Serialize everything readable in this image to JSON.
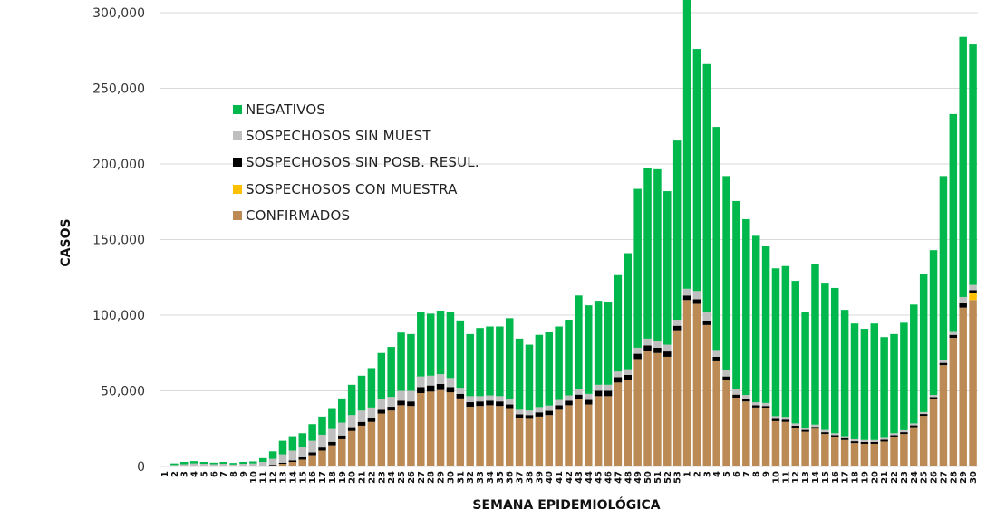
{
  "chart_data": {
    "type": "bar",
    "stacked": true,
    "title": "",
    "xlabel": "SEMANA EPIDEMIOLÓGICA",
    "ylabel": "CASOS",
    "ylim": [
      0,
      300000
    ],
    "yticks": [
      0,
      50000,
      100000,
      150000,
      200000,
      250000,
      300000
    ],
    "ytick_labels": [
      "0",
      "50,000",
      "100,000",
      "150,000",
      "200,000",
      "250,000",
      "300,000"
    ],
    "grid": true,
    "legend_position": "upper-left-inside",
    "categories": [
      "1",
      "2",
      "3",
      "4",
      "5",
      "6",
      "7",
      "8",
      "9",
      "10",
      "11",
      "12",
      "13",
      "14",
      "15",
      "16",
      "17",
      "18",
      "19",
      "20",
      "21",
      "22",
      "23",
      "24",
      "25",
      "26",
      "27",
      "28",
      "29",
      "30",
      "31",
      "32",
      "33",
      "34",
      "35",
      "36",
      "37",
      "38",
      "39",
      "40",
      "41",
      "42",
      "43",
      "44",
      "45",
      "46",
      "47",
      "48",
      "49",
      "50",
      "51",
      "52",
      "53",
      "1",
      "2",
      "3",
      "4",
      "5",
      "6",
      "7",
      "8",
      "9",
      "10",
      "11",
      "12",
      "13",
      "14",
      "15",
      "16",
      "17",
      "18",
      "19",
      "20",
      "21",
      "22",
      "23",
      "24",
      "25",
      "26",
      "27",
      "28",
      "29",
      "30"
    ],
    "series": [
      {
        "name": "CONFIRMADOS",
        "color": "#BB8A55",
        "values": [
          0,
          0,
          0,
          0,
          0,
          0,
          0,
          0,
          0,
          0,
          200,
          800,
          1800,
          3000,
          4500,
          7500,
          10500,
          14000,
          18000,
          23500,
          27000,
          29500,
          35000,
          37000,
          40500,
          40000,
          48500,
          49500,
          50500,
          49000,
          45000,
          39500,
          40000,
          40500,
          40000,
          38000,
          32000,
          31500,
          33000,
          34000,
          37500,
          40500,
          44500,
          41000,
          46500,
          46500,
          55500,
          57000,
          71000,
          76500,
          75000,
          72500,
          90000,
          110000,
          107500,
          93500,
          69500,
          57000,
          45500,
          43000,
          39000,
          38500,
          30000,
          29500,
          25500,
          23000,
          25000,
          21500,
          19500,
          17500,
          15500,
          15000,
          15000,
          16500,
          19500,
          21500,
          26000,
          33500,
          44500,
          67000,
          85000,
          105000,
          110000
        ]
      },
      {
        "name": "SOSPECHOSOS CON MUESTRA",
        "color": "#FFC000",
        "values": [
          0,
          0,
          0,
          0,
          0,
          0,
          0,
          0,
          0,
          0,
          0,
          0,
          0,
          0,
          0,
          0,
          0,
          0,
          0,
          0,
          0,
          0,
          0,
          0,
          0,
          0,
          0,
          0,
          0,
          0,
          0,
          0,
          0,
          0,
          0,
          0,
          0,
          0,
          0,
          0,
          0,
          0,
          0,
          0,
          0,
          0,
          0,
          0,
          0,
          0,
          0,
          0,
          0,
          0,
          0,
          0,
          0,
          0,
          0,
          0,
          0,
          0,
          0,
          0,
          0,
          0,
          0,
          0,
          0,
          0,
          0,
          0,
          0,
          0,
          0,
          0,
          0,
          0,
          0,
          0,
          0,
          0,
          5000
        ]
      },
      {
        "name": "SOSPECHOSOS SIN POSB. RESUL.",
        "color": "#000000",
        "values": [
          0,
          0,
          0,
          0,
          0,
          0,
          0,
          0,
          0,
          0,
          300,
          500,
          700,
          1000,
          1500,
          1800,
          2000,
          2300,
          2500,
          2500,
          2500,
          2500,
          2500,
          2500,
          3000,
          3000,
          4000,
          4000,
          4000,
          3500,
          3000,
          3000,
          3000,
          3000,
          3000,
          3000,
          2500,
          2500,
          2800,
          2800,
          3000,
          3000,
          3000,
          3000,
          3500,
          3500,
          3500,
          3500,
          3500,
          3500,
          3500,
          3500,
          3000,
          3000,
          3000,
          3000,
          3000,
          2500,
          2000,
          1800,
          1500,
          1500,
          1500,
          1500,
          1500,
          1200,
          1200,
          1200,
          1200,
          1200,
          1200,
          1200,
          1200,
          1200,
          1200,
          1200,
          1200,
          1200,
          1300,
          1500,
          2000,
          3000,
          1500
        ]
      },
      {
        "name": "SOSPECHOSOS SIN MUEST",
        "color": "#BFBFBF",
        "values": [
          300,
          1000,
          1500,
          2000,
          1800,
          1500,
          1800,
          1300,
          1800,
          2000,
          2500,
          3700,
          5500,
          6500,
          7000,
          7700,
          8500,
          8500,
          8500,
          8000,
          7500,
          7000,
          7000,
          6500,
          6500,
          7000,
          7000,
          6500,
          6500,
          6000,
          4000,
          4000,
          3500,
          3500,
          3500,
          3500,
          3000,
          3000,
          3500,
          3500,
          3500,
          3500,
          4000,
          4000,
          4000,
          4000,
          3800,
          3800,
          4000,
          4500,
          4500,
          4500,
          4000,
          4500,
          5500,
          5500,
          4500,
          4500,
          3500,
          2500,
          2000,
          2000,
          1800,
          1800,
          1500,
          1500,
          1500,
          1500,
          1300,
          1300,
          1300,
          1300,
          1300,
          1200,
          1300,
          1300,
          1300,
          1300,
          1500,
          2000,
          2500,
          4000,
          3500
        ]
      },
      {
        "name": "NEGATIVOS",
        "color": "#00B84C",
        "values": [
          200,
          1000,
          1500,
          1500,
          1200,
          1000,
          1200,
          1000,
          1200,
          1300,
          2500,
          5000,
          9000,
          9500,
          9000,
          11000,
          12000,
          13200,
          16000,
          20000,
          23000,
          26000,
          30500,
          33000,
          38500,
          37500,
          42500,
          41000,
          42000,
          43500,
          44500,
          41000,
          45000,
          45500,
          46000,
          53500,
          47000,
          43500,
          47700,
          48700,
          48500,
          50000,
          61500,
          58500,
          55500,
          55000,
          63700,
          76700,
          105000,
          113000,
          113500,
          101500,
          118500,
          244000,
          160000,
          164000,
          147500,
          128000,
          124500,
          116200,
          110000,
          103500,
          97700,
          99700,
          94200,
          76300,
          106300,
          97300,
          96000,
          83500,
          76500,
          73500,
          77000,
          66600,
          65500,
          71000,
          78500,
          91000,
          95700,
          121500,
          143500,
          172000,
          159000
        ]
      }
    ]
  },
  "legend": {
    "items": [
      {
        "label": "NEGATIVOS",
        "color": "#00B84C"
      },
      {
        "label": "SOSPECHOSOS SIN MUEST",
        "color": "#BFBFBF"
      },
      {
        "label": "SOSPECHOSOS SIN POSB. RESUL.",
        "color": "#000000"
      },
      {
        "label": "SOSPECHOSOS CON MUESTRA",
        "color": "#FFC000"
      },
      {
        "label": "CONFIRMADOS",
        "color": "#BB8A55"
      }
    ]
  },
  "colors": {
    "gridline": "#D9D9D9",
    "axis": "#D9D9D9"
  }
}
